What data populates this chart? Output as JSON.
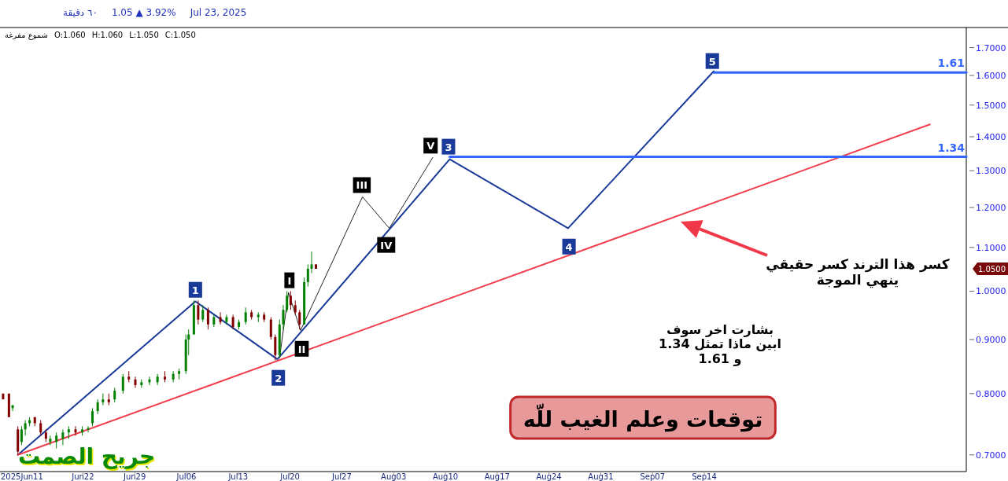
{
  "chart_data": {
    "type": "candlestick",
    "title": "٦٠ دقيقة   1.05 ▲ 3.92%   Jul 23, 2025",
    "subtitle": "شموع مفرغة   O:1.060  H:1.060  L:1.050  C:1.050",
    "log": true,
    "xlim": [
      "2025-06-10T19:00",
      "2025-10-19T10:00"
    ],
    "xticks": [
      {
        "value": "2025-06-11",
        "label": "2025Jun11"
      },
      {
        "value": "2025-06-22",
        "label": "Jun22"
      },
      {
        "value": "2025-06-29",
        "label": "Jun29"
      },
      {
        "value": "2025-07-06",
        "label": "Jul06"
      },
      {
        "value": "2025-07-13",
        "label": "Jul13"
      },
      {
        "value": "2025-07-20",
        "label": "Jul20"
      },
      {
        "value": "2025-07-27",
        "label": "Jul27"
      },
      {
        "value": "2025-08-03",
        "label": "Aug03"
      },
      {
        "value": "2025-08-10",
        "label": "Aug10"
      },
      {
        "value": "2025-08-17",
        "label": "Aug17"
      },
      {
        "value": "2025-08-24",
        "label": "Aug24"
      },
      {
        "value": "2025-08-31",
        "label": "Aug31"
      },
      {
        "value": "2025-09-07",
        "label": "Sep07"
      },
      {
        "value": "2025-09-14",
        "label": "Sep14"
      }
    ],
    "ylim": [
      0.675,
      1.77
    ],
    "yticks": [
      {
        "value": 0.7,
        "label": "0.7000"
      },
      {
        "value": 0.8,
        "label": "0.8000"
      },
      {
        "value": 0.9,
        "label": "0.9000"
      },
      {
        "value": 1.0,
        "label": "1.0000"
      },
      {
        "value": 1.1,
        "label": "1.1000"
      },
      {
        "value": 1.2,
        "label": "1.2000"
      },
      {
        "value": 1.3,
        "label": "1.3000"
      },
      {
        "value": 1.4,
        "label": "1.4000"
      },
      {
        "value": 1.5,
        "label": "1.5000"
      },
      {
        "value": 1.6,
        "label": "1.6000"
      },
      {
        "value": 1.7,
        "label": "1.7000"
      }
    ],
    "x": [
      "2025-06-11T05:00",
      "2025-06-12T00:00",
      "2025-06-12T12:00",
      "2025-06-13T05:00",
      "2025-06-13T17:00",
      "2025-06-14T05:00",
      "2025-06-14T19:00",
      "2025-06-15T12:00",
      "2025-06-16T07:00",
      "2025-06-17T00:00",
      "2025-06-17T14:00",
      "2025-06-18T10:00",
      "2025-06-19T07:00",
      "2025-06-20T02:00",
      "2025-06-21T00:00",
      "2025-06-21T22:00",
      "2025-06-22T17:00",
      "2025-06-23T07:00",
      "2025-06-24T00:00",
      "2025-06-24T17:00",
      "2025-06-25T12:00",
      "2025-06-26T07:00",
      "2025-06-27T10:00",
      "2025-06-28T05:00",
      "2025-06-29T02:00",
      "2025-06-29T22:00",
      "2025-07-01T00:00",
      "2025-07-02T02:00",
      "2025-07-03T02:00",
      "2025-07-04T05:00",
      "2025-07-05T00:00",
      "2025-07-05T22:00",
      "2025-07-06T07:00",
      "2025-07-07T00:00",
      "2025-07-07T14:00",
      "2025-07-08T05:00",
      "2025-07-08T22:00",
      "2025-07-09T17:00",
      "2025-07-10T14:00",
      "2025-07-11T10:00",
      "2025-07-12T07:00",
      "2025-07-13T02:00",
      "2025-07-14T00:00",
      "2025-07-14T19:00",
      "2025-07-15T17:00",
      "2025-07-16T12:00",
      "2025-07-17T10:00",
      "2025-07-18T00:00",
      "2025-07-18T14:00",
      "2025-07-19T02:00",
      "2025-07-19T14:00",
      "2025-07-20T02:00",
      "2025-07-20T17:00",
      "2025-07-21T07:00",
      "2025-07-21T22:00",
      "2025-07-22T10:00",
      "2025-07-22T22:00",
      "2025-07-23T12:00"
    ],
    "ohlc": [
      [
        0.8,
        0.8,
        0.79,
        0.79
      ],
      [
        0.8,
        0.8,
        0.76,
        0.76
      ],
      [
        0.775,
        0.78,
        0.77,
        0.78
      ],
      [
        0.74,
        0.745,
        0.7,
        0.705
      ],
      [
        0.72,
        0.745,
        0.715,
        0.74
      ],
      [
        0.74,
        0.755,
        0.73,
        0.75
      ],
      [
        0.75,
        0.76,
        0.745,
        0.755
      ],
      [
        0.76,
        0.76,
        0.745,
        0.75
      ],
      [
        0.75,
        0.755,
        0.73,
        0.735
      ],
      [
        0.735,
        0.74,
        0.72,
        0.725
      ],
      [
        0.72,
        0.73,
        0.715,
        0.725
      ],
      [
        0.72,
        0.735,
        0.71,
        0.73
      ],
      [
        0.725,
        0.74,
        0.715,
        0.735
      ],
      [
        0.735,
        0.745,
        0.725,
        0.74
      ],
      [
        0.74,
        0.745,
        0.73,
        0.735
      ],
      [
        0.735,
        0.745,
        0.73,
        0.74
      ],
      [
        0.74,
        0.745,
        0.735,
        0.742
      ],
      [
        0.75,
        0.775,
        0.745,
        0.77
      ],
      [
        0.77,
        0.79,
        0.765,
        0.785
      ],
      [
        0.785,
        0.8,
        0.78,
        0.79
      ],
      [
        0.79,
        0.8,
        0.78,
        0.785
      ],
      [
        0.79,
        0.81,
        0.785,
        0.805
      ],
      [
        0.805,
        0.835,
        0.8,
        0.83
      ],
      [
        0.83,
        0.84,
        0.82,
        0.825
      ],
      [
        0.825,
        0.83,
        0.81,
        0.815
      ],
      [
        0.815,
        0.825,
        0.81,
        0.82
      ],
      [
        0.82,
        0.83,
        0.815,
        0.825
      ],
      [
        0.82,
        0.835,
        0.815,
        0.83
      ],
      [
        0.83,
        0.84,
        0.82,
        0.825
      ],
      [
        0.825,
        0.84,
        0.82,
        0.835
      ],
      [
        0.835,
        0.845,
        0.825,
        0.84
      ],
      [
        0.84,
        0.91,
        0.835,
        0.9
      ],
      [
        0.9,
        0.92,
        0.87,
        0.91
      ],
      [
        0.91,
        0.98,
        0.91,
        0.97
      ],
      [
        0.97,
        0.98,
        0.93,
        0.94
      ],
      [
        0.94,
        0.97,
        0.935,
        0.96
      ],
      [
        0.96,
        0.965,
        0.92,
        0.93
      ],
      [
        0.93,
        0.95,
        0.925,
        0.945
      ],
      [
        0.945,
        0.955,
        0.93,
        0.935
      ],
      [
        0.935,
        0.95,
        0.93,
        0.945
      ],
      [
        0.945,
        0.95,
        0.92,
        0.925
      ],
      [
        0.925,
        0.94,
        0.92,
        0.935
      ],
      [
        0.935,
        0.965,
        0.93,
        0.955
      ],
      [
        0.955,
        0.96,
        0.94,
        0.945
      ],
      [
        0.945,
        0.955,
        0.935,
        0.95
      ],
      [
        0.95,
        0.955,
        0.935,
        0.94
      ],
      [
        0.94,
        0.945,
        0.9,
        0.905
      ],
      [
        0.905,
        0.91,
        0.86,
        0.87
      ],
      [
        0.87,
        0.94,
        0.865,
        0.93
      ],
      [
        0.93,
        0.97,
        0.92,
        0.96
      ],
      [
        0.96,
        1.0,
        0.955,
        0.99
      ],
      [
        0.99,
        1.0,
        0.96,
        0.97
      ],
      [
        0.97,
        0.98,
        0.95,
        0.955
      ],
      [
        0.955,
        0.96,
        0.92,
        0.93
      ],
      [
        0.93,
        1.03,
        0.93,
        1.02
      ],
      [
        1.02,
        1.06,
        1.01,
        1.05
      ],
      [
        1.05,
        1.09,
        1.04,
        1.06
      ],
      [
        1.06,
        1.06,
        1.05,
        1.05
      ]
    ],
    "colors": [
      "#800000",
      "#800000",
      "#008000",
      "#800000",
      "#008000",
      "#008000",
      "#008000",
      "#800000",
      "#800000",
      "#800000",
      "#008000",
      "#008000",
      "#008000",
      "#008000",
      "#800000",
      "#008000",
      "#008000",
      "#008000",
      "#008000",
      "#008000",
      "#800000",
      "#008000",
      "#008000",
      "#800000",
      "#800000",
      "#008000",
      "#008000",
      "#008000",
      "#800000",
      "#008000",
      "#008000",
      "#008000",
      "#008000",
      "#008000",
      "#800000",
      "#008000",
      "#800000",
      "#008000",
      "#800000",
      "#008000",
      "#800000",
      "#008000",
      "#008000",
      "#800000",
      "#008000",
      "#800000",
      "#800000",
      "#800000",
      "#008000",
      "#008000",
      "#008000",
      "#800000",
      "#800000",
      "#800000",
      "#008000",
      "#008000",
      "#008000",
      "#800000"
    ],
    "series": [
      {
        "type": "line",
        "color": "#1a3a9a",
        "x": [
          "2025-06-13T05:00",
          "2025-07-07T05:00",
          "2025-07-18T07:00",
          "2025-08-10T14:00",
          "2025-08-26T14:00",
          "2025-09-15T07:00"
        ],
        "values": [
          0.7,
          0.978,
          0.862,
          1.333,
          1.147,
          1.615
        ]
      },
      {
        "type": "line",
        "color": "#222222",
        "x": [
          "2025-07-18T14:00",
          "2025-07-19T19:00",
          "2025-07-21T10:00",
          "2025-07-29T19:00",
          "2025-08-02T10:00",
          "2025-08-08T07:00"
        ],
        "values": [
          0.865,
          0.997,
          0.918,
          1.228,
          1.147,
          1.338
        ]
      },
      {
        "type": "line",
        "color": "#f04050",
        "x": [
          "2025-06-13T05:00",
          "2025-10-14T12:00"
        ],
        "values": [
          0.7,
          1.438
        ]
      },
      {
        "type": "line",
        "color": "#3366ff",
        "x": [
          "2025-09-15T07:00",
          "2025-10-19T10:00"
        ],
        "values": [
          1.61,
          1.61
        ]
      },
      {
        "type": "line",
        "color": "#3366ff",
        "x": [
          "2025-08-10T14:00",
          "2025-10-19T10:00"
        ],
        "values": [
          1.34,
          1.34
        ]
      }
    ],
    "annotations": [
      {
        "text": "1",
        "x": "2025-07-07T05:00",
        "y": 1.003
      },
      {
        "text": "2",
        "x": "2025-07-18T10:00",
        "y": 0.828
      },
      {
        "text": "3",
        "x": "2025-08-10T10:00",
        "y": 1.37
      },
      {
        "text": "4",
        "x": "2025-08-26T17:00",
        "y": 1.102
      },
      {
        "text": "5",
        "x": "2025-09-15T02:00",
        "y": 1.651
      },
      {
        "text": "I",
        "x": "2025-07-19T22:00",
        "y": 1.024
      },
      {
        "text": "II",
        "x": "2025-07-21T14:00",
        "y": 0.882
      },
      {
        "text": "III",
        "x": "2025-07-29T17:00",
        "y": 1.26
      },
      {
        "text": "IV",
        "x": "2025-08-02T00:00",
        "y": 1.106
      },
      {
        "text": "V",
        "x": "2025-08-08T00:00",
        "y": 1.373
      },
      {
        "text": "1.61",
        "x": "2025-10-19T10:00",
        "y": 1.61
      },
      {
        "text": "1.34",
        "x": "2025-10-19T10:00",
        "y": 1.34
      },
      "كسر هذا الترند كسر حقيقي\nينهي الموجة",
      "1.0500",
      "بشارت اخر سوف\nابين ماذا تمثل 1.34\nو 1.61",
      "توقعات وعلم الغيب للّه",
      "جريح الصمت"
    ]
  }
}
